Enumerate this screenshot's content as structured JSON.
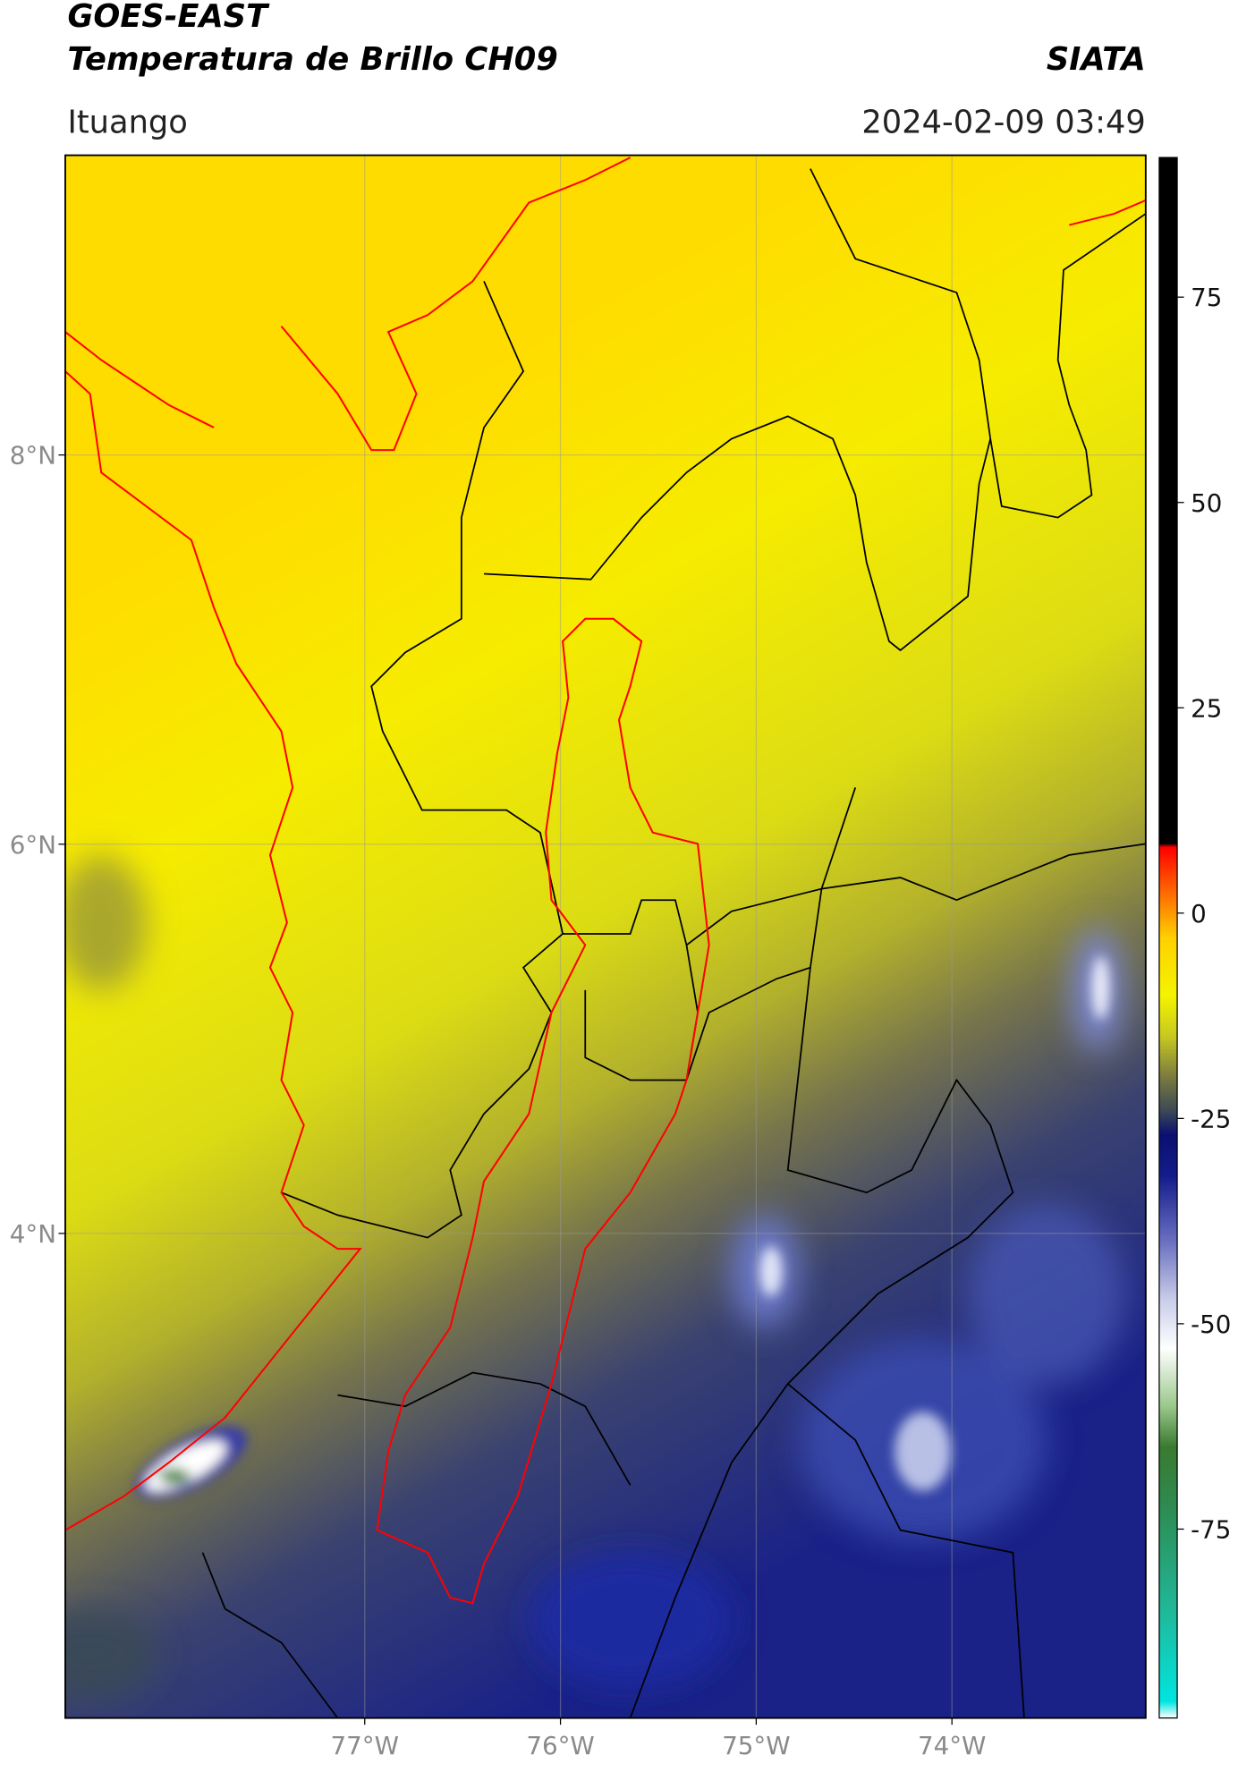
{
  "header": {
    "title_line1": "GOES-EAST",
    "title_line2": "Temperatura de Brillo CH09",
    "source": "SIATA",
    "location": "Ituango",
    "timestamp": "2024-02-09 03:49"
  },
  "map": {
    "lat_range": [
      1.51,
      9.54
    ],
    "lon_range": [
      -78.53,
      -73.01
    ],
    "lat_ticks": [
      {
        "value": 8,
        "label": "8°N"
      },
      {
        "value": 6,
        "label": "6°N"
      },
      {
        "value": 4,
        "label": "4°N"
      }
    ],
    "lon_ticks": [
      {
        "value": -77,
        "label": "77°W"
      },
      {
        "value": -76,
        "label": "76°W"
      },
      {
        "value": -75,
        "label": "75°W"
      },
      {
        "value": -74,
        "label": "74°W"
      }
    ]
  },
  "colorbar": {
    "range": [
      -98,
      92
    ],
    "ticks": [
      -75,
      -50,
      -25,
      0,
      25,
      50,
      75
    ],
    "stops": [
      {
        "value": -98,
        "color": "#ffffff"
      },
      {
        "value": -96,
        "color": "#00e5e0"
      },
      {
        "value": -85,
        "color": "#20b89a"
      },
      {
        "value": -72,
        "color": "#2e8a50"
      },
      {
        "value": -65,
        "color": "#3a7a30"
      },
      {
        "value": -60,
        "color": "#9cc88c"
      },
      {
        "value": -53,
        "color": "#ffffff"
      },
      {
        "value": -47,
        "color": "#c8cce8"
      },
      {
        "value": -40,
        "color": "#6a70c0"
      },
      {
        "value": -32,
        "color": "#141c8c"
      },
      {
        "value": -27,
        "color": "#0a1070"
      },
      {
        "value": -24,
        "color": "#3c4a55"
      },
      {
        "value": -20,
        "color": "#7a7a40"
      },
      {
        "value": -15,
        "color": "#c8c820"
      },
      {
        "value": -10,
        "color": "#f4f400"
      },
      {
        "value": -3,
        "color": "#ffd000"
      },
      {
        "value": 3,
        "color": "#ff6000"
      },
      {
        "value": 8,
        "color": "#ff0000"
      },
      {
        "value": 8.5,
        "color": "#000000"
      },
      {
        "value": 92,
        "color": "#000000"
      }
    ]
  }
}
